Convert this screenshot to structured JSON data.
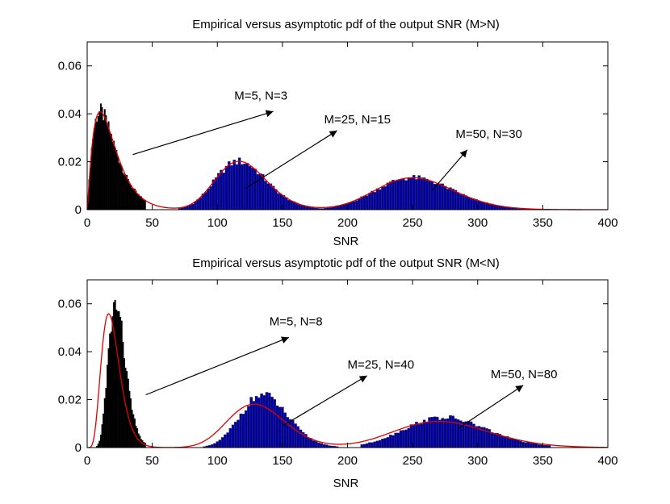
{
  "colors": {
    "axes": "#000000",
    "hist_small": "#000000",
    "hist_large": "#0000a0",
    "bar_edge": "#404040",
    "pdf_line": "#e00000"
  },
  "chart_data": [
    {
      "type": "bar",
      "title": "Empirical versus asymptotic pdf of the output SNR (M>N)",
      "xlabel": "SNR",
      "ylabel": "",
      "xlim": [
        0,
        400
      ],
      "ylim": [
        0,
        0.07
      ],
      "xticks": [
        "0",
        "50",
        "100",
        "150",
        "200",
        "250",
        "300",
        "350",
        "400"
      ],
      "yticks": [
        "0",
        "0.02",
        "0.04",
        "0.06"
      ],
      "series": [
        {
          "name": "M=5, N=3",
          "kind": "gamma",
          "k": 2.2,
          "theta": 8.33,
          "xstart": 0,
          "xend": 45,
          "binwidth": 1,
          "color": "black",
          "label_text": "M=5, N=3",
          "arrow_tail": [
            35,
            0.023
          ],
          "arrow_head": [
            143,
            0.041
          ],
          "label_at": [
            113,
            0.046
          ]
        },
        {
          "name": "M=25, N=15",
          "kind": "gamma",
          "k": 36,
          "theta": 3.333,
          "xstart": 60,
          "xend": 200,
          "binwidth": 2,
          "color": "blue",
          "label_text": "M=25, N=15",
          "arrow_tail": [
            122,
            0.009
          ],
          "arrow_head": [
            192,
            0.033
          ],
          "label_at": [
            182,
            0.036
          ]
        },
        {
          "name": "M=50, N=30",
          "kind": "gamma",
          "k": 71,
          "theta": 3.571,
          "xstart": 160,
          "xend": 350,
          "binwidth": 2,
          "color": "blue",
          "label_text": "M=50, N=30",
          "arrow_tail": [
            265,
            0.008
          ],
          "arrow_head": [
            292,
            0.025
          ],
          "label_at": [
            283,
            0.03
          ]
        }
      ]
    },
    {
      "type": "bar",
      "title": "Empirical versus asymptotic pdf of the output SNR (M<N)",
      "xlabel": "SNR",
      "ylabel": "",
      "xlim": [
        0,
        400
      ],
      "ylim": [
        0,
        0.07
      ],
      "xticks": [
        "0",
        "50",
        "100",
        "150",
        "200",
        "250",
        "300",
        "350",
        "400"
      ],
      "yticks": [
        "0",
        "0.02",
        "0.04",
        "0.06"
      ],
      "series": [
        {
          "name": "M=5, N=8",
          "kind": "gamma",
          "k": 6.5,
          "theta": 3.0,
          "hist_k": 12,
          "hist_theta": 2.0,
          "xstart": 0,
          "xend": 45,
          "binwidth": 1,
          "color": "black",
          "label_text": "M=5, N=8",
          "arrow_tail": [
            45,
            0.022
          ],
          "arrow_head": [
            155,
            0.046
          ],
          "label_at": [
            140,
            0.051
          ]
        },
        {
          "name": "M=25, N=40",
          "kind": "gamma",
          "k": 35,
          "theta": 3.77,
          "hist_k": 56,
          "hist_theta": 2.45,
          "xstart": 75,
          "xend": 215,
          "binwidth": 2,
          "color": "blue",
          "label_text": "M=25, N=40",
          "arrow_tail": [
            150,
            0.009
          ],
          "arrow_head": [
            215,
            0.03
          ],
          "label_at": [
            200,
            0.033
          ]
        },
        {
          "name": "M=50, N=80",
          "kind": "gamma",
          "k": 56,
          "theta": 4.91,
          "hist_k": 75,
          "hist_theta": 3.7,
          "xstart": 210,
          "xend": 355,
          "binwidth": 2,
          "color": "blue",
          "label_text": "M=50, N=80",
          "arrow_tail": [
            285,
            0.008
          ],
          "arrow_head": [
            335,
            0.026
          ],
          "label_at": [
            310,
            0.029
          ]
        }
      ]
    }
  ]
}
